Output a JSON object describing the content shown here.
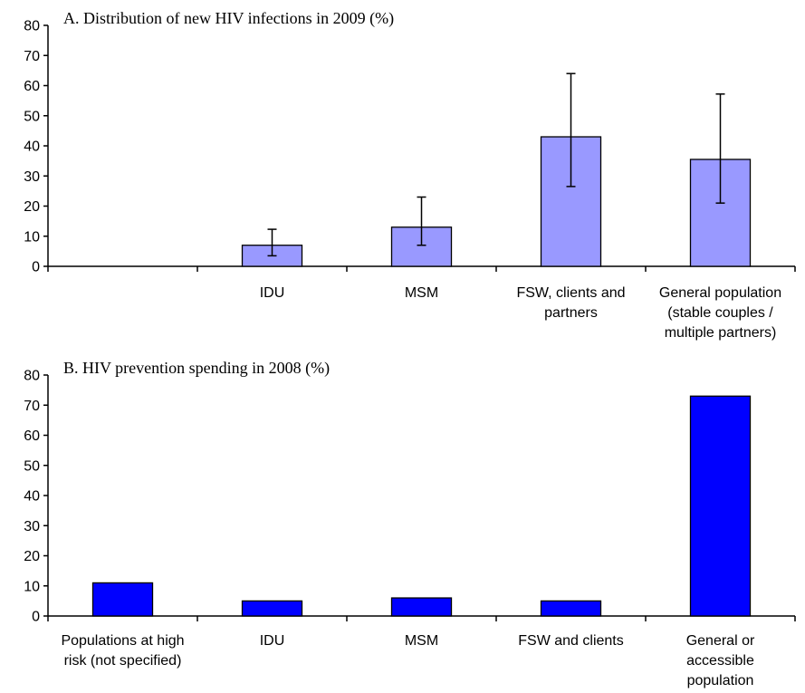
{
  "chart_data": [
    {
      "type": "bar",
      "title": "A. Distribution of new HIV infections in 2009 (%)",
      "xlabel": "",
      "ylabel": "",
      "ylim": [
        0,
        80
      ],
      "yticks": [
        0,
        10,
        20,
        30,
        40,
        50,
        60,
        70,
        80
      ],
      "categories": [
        [
          ""
        ],
        [
          "IDU"
        ],
        [
          "MSM"
        ],
        [
          "FSW, clients and",
          "partners"
        ],
        [
          "General population",
          "(stable couples /",
          "multiple partners)"
        ]
      ],
      "values": [
        null,
        7,
        13,
        43,
        35.5
      ],
      "error_low": [
        null,
        3.5,
        7,
        26.5,
        21
      ],
      "error_high": [
        null,
        12.3,
        23,
        64,
        57.2
      ],
      "bar_color": "#9999ff",
      "grid": false,
      "legend": "none"
    },
    {
      "type": "bar",
      "title": "B. HIV prevention spending in 2008 (%)",
      "xlabel": "",
      "ylabel": "",
      "ylim": [
        0,
        80
      ],
      "yticks": [
        0,
        10,
        20,
        30,
        40,
        50,
        60,
        70,
        80
      ],
      "categories": [
        [
          "Populations at high",
          "risk (not specified)"
        ],
        [
          "IDU"
        ],
        [
          "MSM"
        ],
        [
          "FSW and clients"
        ],
        [
          "General or",
          "accessible",
          "population"
        ]
      ],
      "values": [
        11,
        5,
        6,
        5,
        73
      ],
      "bar_color": "#0000ff",
      "grid": false,
      "legend": "none"
    }
  ]
}
